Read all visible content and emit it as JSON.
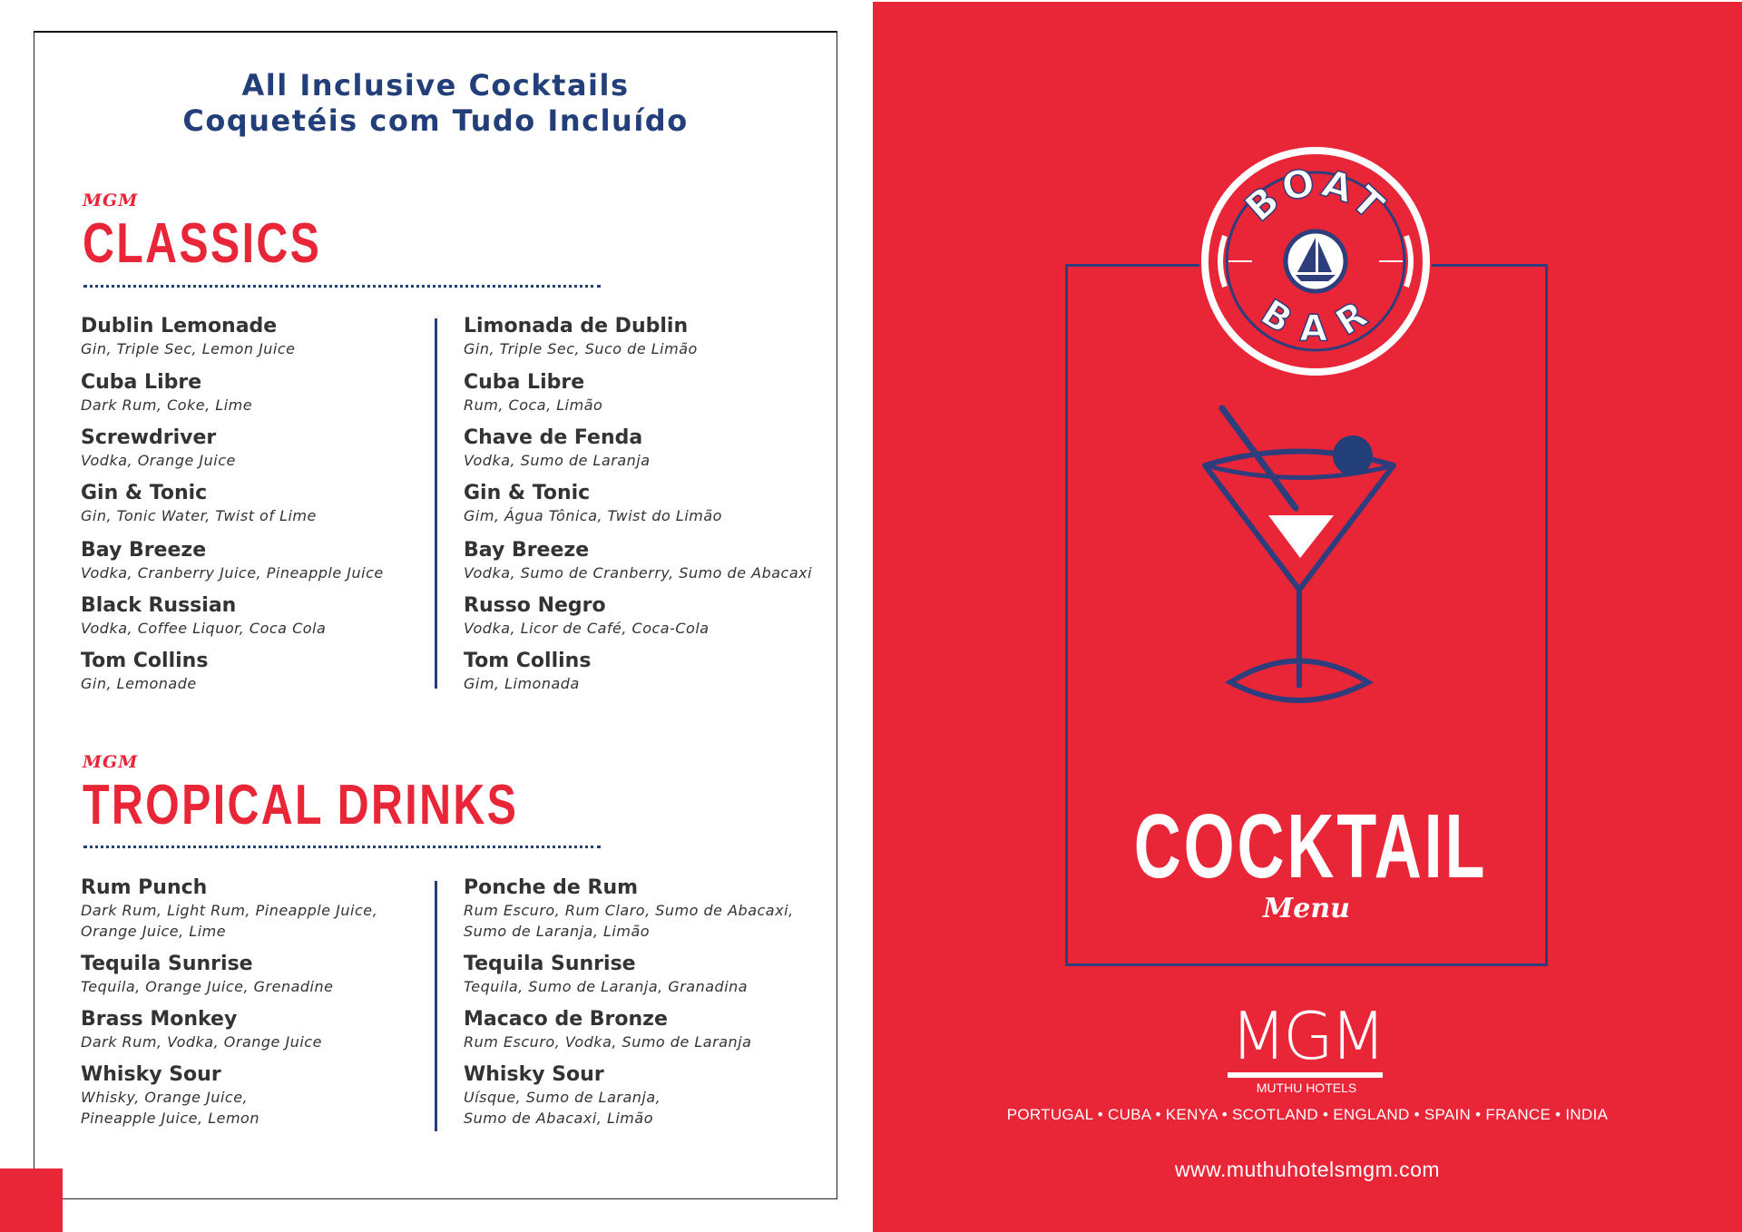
{
  "header": {
    "title_en": "All Inclusive Cocktails",
    "title_pt": "Coquetéis com Tudo Incluído"
  },
  "sections": [
    {
      "brand": "MGM",
      "heading": "CLASSICS",
      "items_en": [
        {
          "name": "Dublin Lemonade",
          "desc": "Gin, Triple Sec, Lemon Juice"
        },
        {
          "name": "Cuba Libre",
          "desc": "Dark Rum, Coke, Lime"
        },
        {
          "name": "Screwdriver",
          "desc": "Vodka, Orange Juice"
        },
        {
          "name": "Gin & Tonic",
          "desc": "Gin, Tonic Water, Twist of Lime"
        },
        {
          "name": "Bay Breeze",
          "desc": "Vodka, Cranberry Juice, Pineapple Juice"
        },
        {
          "name": "Black Russian",
          "desc": "Vodka, Coffee Liquor, Coca Cola"
        },
        {
          "name": "Tom Collins",
          "desc": "Gin, Lemonade"
        }
      ],
      "items_pt": [
        {
          "name": "Limonada de Dublin",
          "desc": "Gin, Triple Sec, Suco de Limão"
        },
        {
          "name": "Cuba Libre",
          "desc": "Rum, Coca, Limão"
        },
        {
          "name": "Chave de Fenda",
          "desc": "Vodka, Sumo de Laranja"
        },
        {
          "name": "Gin & Tonic",
          "desc": "Gim, Água Tônica, Twist do Limão"
        },
        {
          "name": "Bay Breeze",
          "desc": "Vodka, Sumo de Cranberry, Sumo de Abacaxi"
        },
        {
          "name": "Russo Negro",
          "desc": "Vodka, Licor de Café, Coca-Cola"
        },
        {
          "name": "Tom Collins",
          "desc": "Gim, Limonada"
        }
      ]
    },
    {
      "brand": "MGM",
      "heading": "TROPICAL DRINKS",
      "items_en": [
        {
          "name": "Rum Punch",
          "desc": "Dark Rum, Light Rum, Pineapple Juice,\nOrange Juice, Lime"
        },
        {
          "name": "Tequila Sunrise",
          "desc": "Tequila, Orange Juice, Grenadine"
        },
        {
          "name": "Brass Monkey",
          "desc": "Dark Rum, Vodka, Orange Juice"
        },
        {
          "name": "Whisky Sour",
          "desc": "Whisky, Orange Juice,\nPineapple Juice, Lemon"
        }
      ],
      "items_pt": [
        {
          "name": "Ponche de Rum",
          "desc": "Rum Escuro, Rum Claro, Sumo de Abacaxi,\nSumo de Laranja, Limão"
        },
        {
          "name": "Tequila Sunrise",
          "desc": "Tequila, Sumo de Laranja, Granadina"
        },
        {
          "name": "Macaco de Bronze",
          "desc": "Rum Escuro, Vodka, Sumo de Laranja"
        },
        {
          "name": "Whisky Sour",
          "desc": "Uísque, Sumo de Laranja,\nSumo de Abacaxi, Limão"
        }
      ]
    }
  ],
  "cover": {
    "logo_top": "BOAT",
    "logo_bottom": "BAR",
    "title": "COCKTAIL",
    "subtitle": "Menu",
    "brand": "MGM",
    "brand_sub": "MUTHU HOTELS",
    "countries": "PORTUGAL • CUBA • KENYA • SCOTLAND • ENGLAND • SPAIN • FRANCE • INDIA",
    "url": "www.muthuhotelsmgm.com",
    "icons": [
      "boat-bar-logo",
      "sailboat-icon",
      "martini-glass-icon"
    ]
  },
  "colors": {
    "red": "#e92538",
    "navy": "#233f7a",
    "text": "#333333",
    "white": "#ffffff"
  }
}
